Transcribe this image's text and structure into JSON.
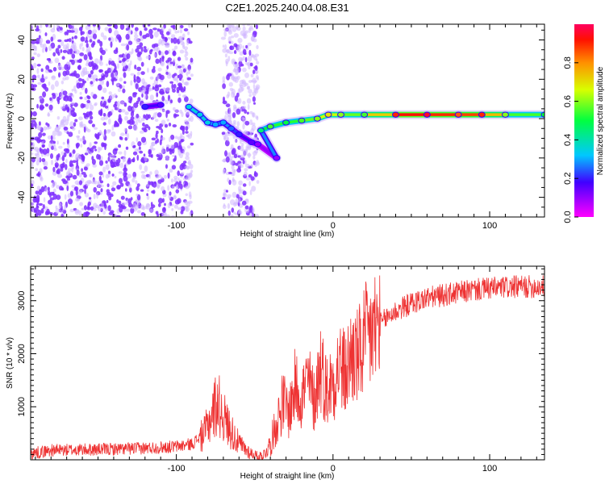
{
  "title": "C2E1.2025.240.04.08.E31",
  "colors": {
    "snr_line": "#ee3333",
    "noise_violet": "#7f2fff",
    "noise_lavender": "#cfb6ff",
    "frame": "#000000"
  },
  "colorbar": {
    "label": "Normalized spectral amplitude",
    "ticks": [
      "0.0",
      "0.2",
      "0.4",
      "0.6",
      "0.8"
    ],
    "range": [
      0,
      1
    ],
    "colormap": "hsv-reversed (magenta-blue-cyan-green-yellow-red)"
  },
  "chart_data": [
    {
      "type": "heatmap",
      "name": "spectrogram",
      "title": "C2E1.2025.240.04.08.E31",
      "xlabel": "Height of straight line (km)",
      "ylabel": "Frequency (Hz)",
      "xlim": [
        -193,
        135
      ],
      "ylim": [
        -50,
        48
      ],
      "xticks": [
        -100,
        0,
        100
      ],
      "xtick_labels": [
        "-100",
        "0",
        "100"
      ],
      "yticks": [
        -40,
        -20,
        0,
        20,
        40
      ],
      "ytick_labels": [
        "-40",
        "-20",
        "0",
        "20",
        "40"
      ],
      "noise_bands": [
        {
          "x_start": -193,
          "x_end": -90,
          "density": "high"
        },
        {
          "x_start": -70,
          "x_end": -48,
          "density": "medium"
        }
      ],
      "ridge": [
        {
          "x": -120,
          "y": 6,
          "amp": 0.2
        },
        {
          "x": -110,
          "y": 7,
          "amp": 0.15
        },
        {
          "x": -92,
          "y": 6,
          "amp": 0.35
        },
        {
          "x": -85,
          "y": 2,
          "amp": 0.35
        },
        {
          "x": -80,
          "y": -2,
          "amp": 0.35
        },
        {
          "x": -75,
          "y": -3,
          "amp": 0.3
        },
        {
          "x": -70,
          "y": -2,
          "amp": 0.3
        },
        {
          "x": -65,
          "y": -5,
          "amp": 0.25
        },
        {
          "x": -60,
          "y": -8,
          "amp": 0.2
        },
        {
          "x": -52,
          "y": -12,
          "amp": 0.15
        },
        {
          "x": -48,
          "y": -13,
          "amp": 0.1
        },
        {
          "x": -36,
          "y": -20,
          "amp": 0.1
        },
        {
          "x": -46,
          "y": -6,
          "amp": 0.45
        },
        {
          "x": -40,
          "y": -4,
          "amp": 0.55
        },
        {
          "x": -30,
          "y": -2,
          "amp": 0.5
        },
        {
          "x": -20,
          "y": -1,
          "amp": 0.55
        },
        {
          "x": -10,
          "y": 0,
          "amp": 0.6
        },
        {
          "x": -3,
          "y": 2,
          "amp": 0.7
        },
        {
          "x": 5,
          "y": 2,
          "amp": 0.6
        },
        {
          "x": 20,
          "y": 2,
          "amp": 0.55
        },
        {
          "x": 40,
          "y": 2,
          "amp": 0.9
        },
        {
          "x": 60,
          "y": 2,
          "amp": 0.95
        },
        {
          "x": 80,
          "y": 2,
          "amp": 0.85
        },
        {
          "x": 95,
          "y": 2,
          "amp": 0.9
        },
        {
          "x": 110,
          "y": 2,
          "amp": 0.6
        },
        {
          "x": 135,
          "y": 2,
          "amp": 0.5
        }
      ]
    },
    {
      "type": "line",
      "name": "snr",
      "xlabel": "Height of straight line (km)",
      "ylabel": "SNR (10 * v/v)",
      "xlim": [
        -193,
        135
      ],
      "ylim": [
        0,
        3650
      ],
      "xticks": [
        -100,
        0,
        100
      ],
      "xtick_labels": [
        "-100",
        "0",
        "100"
      ],
      "yticks": [
        1000,
        2000,
        3000
      ],
      "ytick_labels": [
        "1000",
        "2000",
        "3000"
      ],
      "series": [
        {
          "name": "SNR",
          "x": [
            -193,
            -180,
            -160,
            -140,
            -120,
            -100,
            -90,
            -82,
            -78,
            -74,
            -71,
            -68,
            -64,
            -60,
            -56,
            -52,
            -48,
            -44,
            -40,
            -36,
            -32,
            -28,
            -24,
            -20,
            -16,
            -12,
            -8,
            -4,
            0,
            4,
            8,
            12,
            16,
            20,
            25,
            30,
            35,
            40,
            50,
            60,
            70,
            80,
            90,
            100,
            110,
            120,
            135
          ],
          "values": [
            120,
            180,
            190,
            200,
            220,
            250,
            300,
            500,
            800,
            1100,
            900,
            700,
            500,
            300,
            200,
            120,
            60,
            100,
            300,
            700,
            1100,
            900,
            1400,
            1200,
            1500,
            1100,
            1800,
            1300,
            1500,
            1800,
            1600,
            2000,
            1900,
            2200,
            2400,
            2550,
            2700,
            2800,
            2950,
            3050,
            3100,
            3150,
            3200,
            3230,
            3250,
            3260,
            3270
          ]
        }
      ]
    }
  ]
}
